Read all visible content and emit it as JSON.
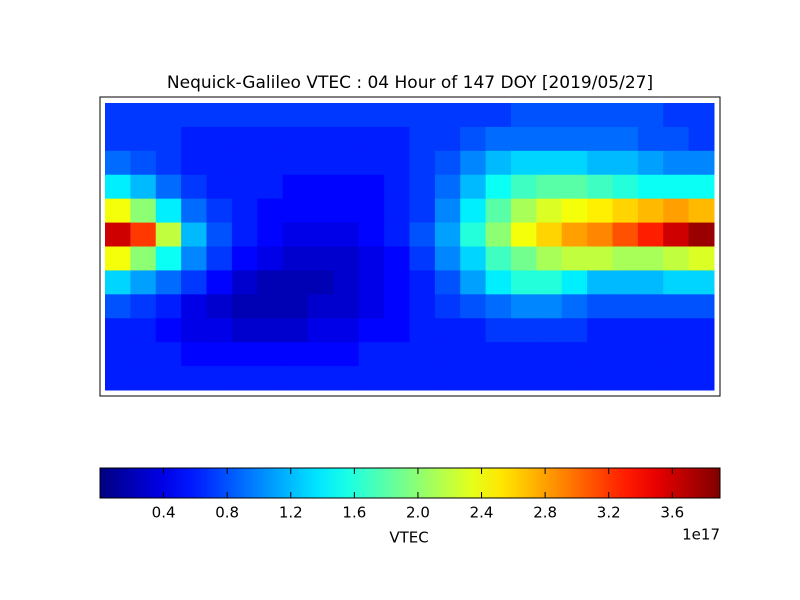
{
  "chart_data": {
    "type": "heatmap",
    "title": "Nequick-Galileo VTEC : 04 Hour of 147 DOY [2019/05/27]",
    "colormap": "jet",
    "values": [
      [
        0.7,
        0.7,
        0.7,
        0.7,
        0.7,
        0.7,
        0.7,
        0.7,
        0.7,
        0.7,
        0.7,
        0.7,
        0.7,
        0.7,
        0.7,
        0.7,
        0.8,
        0.8,
        0.8,
        0.8,
        0.8,
        0.8,
        0.7,
        0.7
      ],
      [
        0.7,
        0.7,
        0.7,
        0.6,
        0.6,
        0.6,
        0.6,
        0.6,
        0.6,
        0.6,
        0.6,
        0.6,
        0.7,
        0.7,
        0.8,
        0.9,
        0.9,
        0.9,
        0.9,
        0.9,
        0.9,
        0.8,
        0.8,
        0.7
      ],
      [
        0.9,
        0.8,
        0.7,
        0.6,
        0.6,
        0.6,
        0.6,
        0.6,
        0.6,
        0.6,
        0.6,
        0.6,
        0.7,
        0.8,
        1.0,
        1.2,
        1.3,
        1.3,
        1.3,
        1.2,
        1.2,
        1.1,
        1.0,
        1.0
      ],
      [
        1.4,
        1.2,
        0.9,
        0.7,
        0.6,
        0.6,
        0.6,
        0.5,
        0.5,
        0.5,
        0.5,
        0.6,
        0.7,
        0.9,
        1.2,
        1.5,
        1.7,
        1.8,
        1.8,
        1.7,
        1.6,
        1.5,
        1.5,
        1.5
      ],
      [
        2.4,
        2.0,
        1.4,
        0.9,
        0.7,
        0.6,
        0.5,
        0.5,
        0.5,
        0.5,
        0.5,
        0.6,
        0.7,
        1.0,
        1.4,
        1.8,
        2.1,
        2.3,
        2.4,
        2.5,
        2.6,
        2.7,
        2.8,
        2.7
      ],
      [
        3.6,
        3.2,
        2.2,
        1.2,
        0.8,
        0.6,
        0.5,
        0.4,
        0.4,
        0.4,
        0.5,
        0.6,
        0.8,
        1.1,
        1.6,
        2.0,
        2.4,
        2.6,
        2.8,
        2.9,
        3.1,
        3.3,
        3.6,
        3.8
      ],
      [
        2.4,
        2.0,
        1.5,
        1.0,
        0.7,
        0.5,
        0.4,
        0.3,
        0.3,
        0.3,
        0.4,
        0.5,
        0.7,
        1.0,
        1.3,
        1.7,
        1.9,
        2.1,
        2.2,
        2.2,
        2.1,
        2.1,
        2.2,
        2.3
      ],
      [
        1.3,
        1.1,
        0.9,
        0.7,
        0.5,
        0.3,
        0.2,
        0.2,
        0.2,
        0.3,
        0.4,
        0.5,
        0.6,
        0.8,
        1.1,
        1.4,
        1.6,
        1.6,
        1.4,
        1.2,
        1.2,
        1.2,
        1.3,
        1.3
      ],
      [
        0.8,
        0.7,
        0.6,
        0.4,
        0.3,
        0.2,
        0.2,
        0.2,
        0.3,
        0.3,
        0.4,
        0.5,
        0.6,
        0.7,
        0.8,
        0.9,
        1.0,
        1.0,
        0.9,
        0.8,
        0.8,
        0.8,
        0.8,
        0.8
      ],
      [
        0.6,
        0.6,
        0.5,
        0.4,
        0.4,
        0.3,
        0.3,
        0.3,
        0.4,
        0.4,
        0.5,
        0.5,
        0.6,
        0.6,
        0.6,
        0.7,
        0.7,
        0.7,
        0.7,
        0.6,
        0.6,
        0.6,
        0.6,
        0.6
      ],
      [
        0.6,
        0.6,
        0.6,
        0.5,
        0.5,
        0.5,
        0.5,
        0.5,
        0.5,
        0.5,
        0.6,
        0.6,
        0.6,
        0.6,
        0.6,
        0.6,
        0.6,
        0.6,
        0.6,
        0.6,
        0.6,
        0.6,
        0.6,
        0.6
      ],
      [
        0.6,
        0.6,
        0.6,
        0.6,
        0.6,
        0.6,
        0.6,
        0.6,
        0.6,
        0.6,
        0.6,
        0.6,
        0.6,
        0.6,
        0.6,
        0.6,
        0.6,
        0.6,
        0.6,
        0.6,
        0.6,
        0.6,
        0.6,
        0.6
      ]
    ],
    "colorbar": {
      "label": "VTEC",
      "offset_label": "1e17",
      "lim": [
        0,
        3.9
      ],
      "ticks": [
        0.4,
        0.8,
        1.2,
        1.6,
        {
          "value": 2,
          "label": "2.0"
        },
        2.4,
        2.8,
        3.2,
        3.6
      ]
    }
  }
}
